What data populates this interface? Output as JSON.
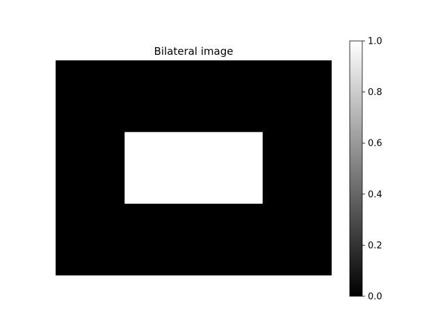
{
  "chart_data": {
    "type": "heatmap",
    "title": "Bilateral image",
    "image": {
      "width": 4,
      "height": 3,
      "background_value": 0.0,
      "inner_rectangle": {
        "x0": 1.0,
        "x1": 3.0,
        "y0": 1.0,
        "y1": 2.0,
        "value": 1.0
      }
    },
    "colormap": "gray",
    "axes_visible": false,
    "colorbar": {
      "range": [
        0.0,
        1.0
      ],
      "ticks": [
        0.0,
        0.2,
        0.4,
        0.6,
        0.8,
        1.0
      ],
      "tick_labels": [
        "0.0",
        "0.2",
        "0.4",
        "0.6",
        "0.8",
        "1.0"
      ],
      "placement": "right"
    }
  }
}
